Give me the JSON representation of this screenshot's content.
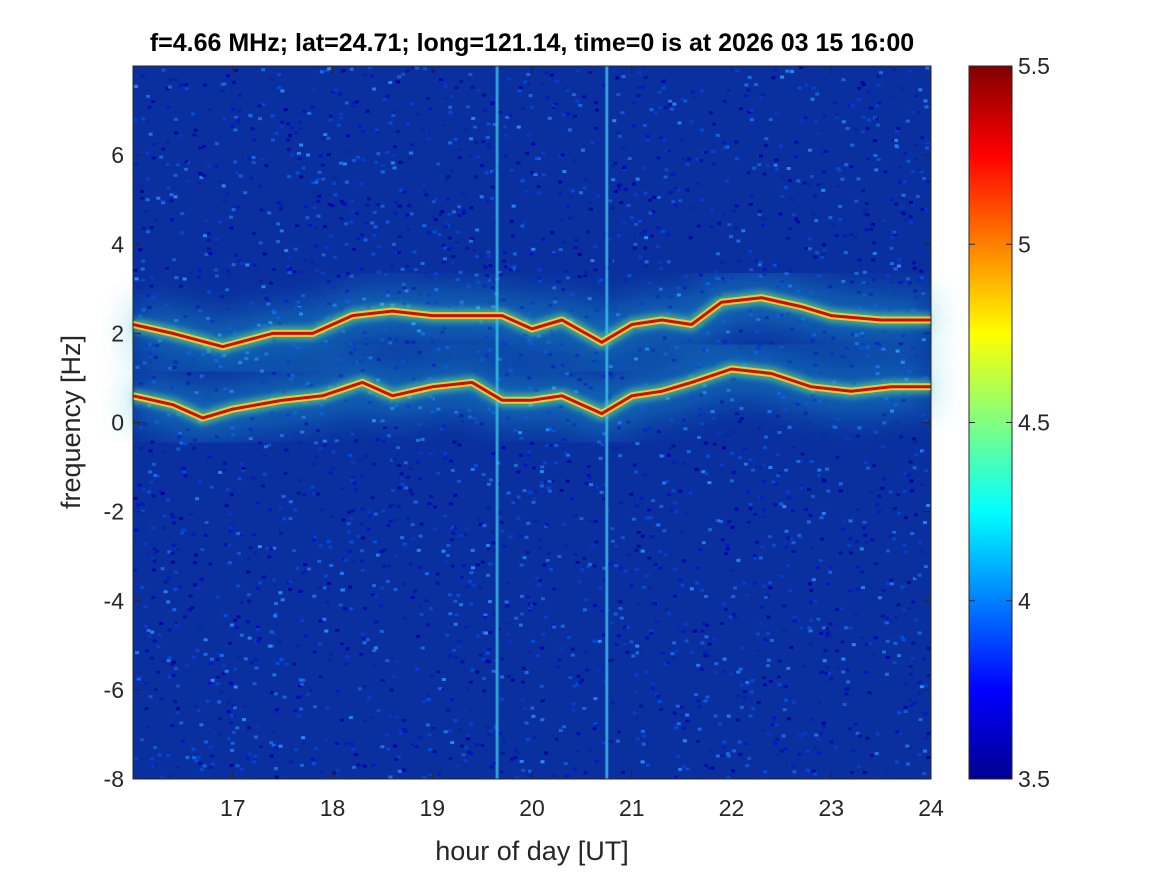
{
  "chart_data": {
    "type": "heatmap",
    "title": "f=4.66 MHz;  lat=24.71; long=121.14, time=0 is at 2026 03 15 16:00",
    "xlabel": "hour of day [UT]",
    "ylabel": "frequency [Hz]",
    "xlim": [
      16.0,
      24.0
    ],
    "ylim": [
      -8,
      8
    ],
    "x_ticks": [
      17,
      18,
      19,
      20,
      21,
      22,
      23,
      24
    ],
    "y_ticks": [
      -8,
      -6,
      -4,
      -2,
      0,
      2,
      4,
      6
    ],
    "colorbar": {
      "colormap": "jet",
      "clim": [
        3.5,
        5.5
      ],
      "ticks": [
        3.5,
        4,
        4.5,
        5,
        5.5
      ]
    },
    "grid": false,
    "vertical_lines": [
      19.65,
      20.75
    ],
    "upper_trace": {
      "x": [
        16.0,
        16.4,
        16.9,
        17.4,
        17.8,
        18.2,
        18.6,
        19.0,
        19.3,
        19.7,
        20.0,
        20.3,
        20.7,
        21.0,
        21.3,
        21.6,
        21.9,
        22.3,
        22.7,
        23.0,
        23.5,
        24.0
      ],
      "y": [
        2.2,
        2.0,
        1.7,
        2.0,
        2.0,
        2.4,
        2.5,
        2.4,
        2.4,
        2.4,
        2.1,
        2.3,
        1.8,
        2.2,
        2.3,
        2.2,
        2.7,
        2.8,
        2.6,
        2.4,
        2.3,
        2.3
      ]
    },
    "lower_trace": {
      "x": [
        16.0,
        16.4,
        16.7,
        17.0,
        17.5,
        17.9,
        18.3,
        18.6,
        19.0,
        19.4,
        19.7,
        20.0,
        20.3,
        20.7,
        21.0,
        21.3,
        21.6,
        22.0,
        22.4,
        22.8,
        23.2,
        23.6,
        24.0
      ],
      "y": [
        0.6,
        0.4,
        0.1,
        0.3,
        0.5,
        0.6,
        0.9,
        0.6,
        0.8,
        0.9,
        0.5,
        0.5,
        0.6,
        0.2,
        0.6,
        0.7,
        0.9,
        1.2,
        1.1,
        0.8,
        0.7,
        0.8,
        0.8
      ]
    }
  }
}
